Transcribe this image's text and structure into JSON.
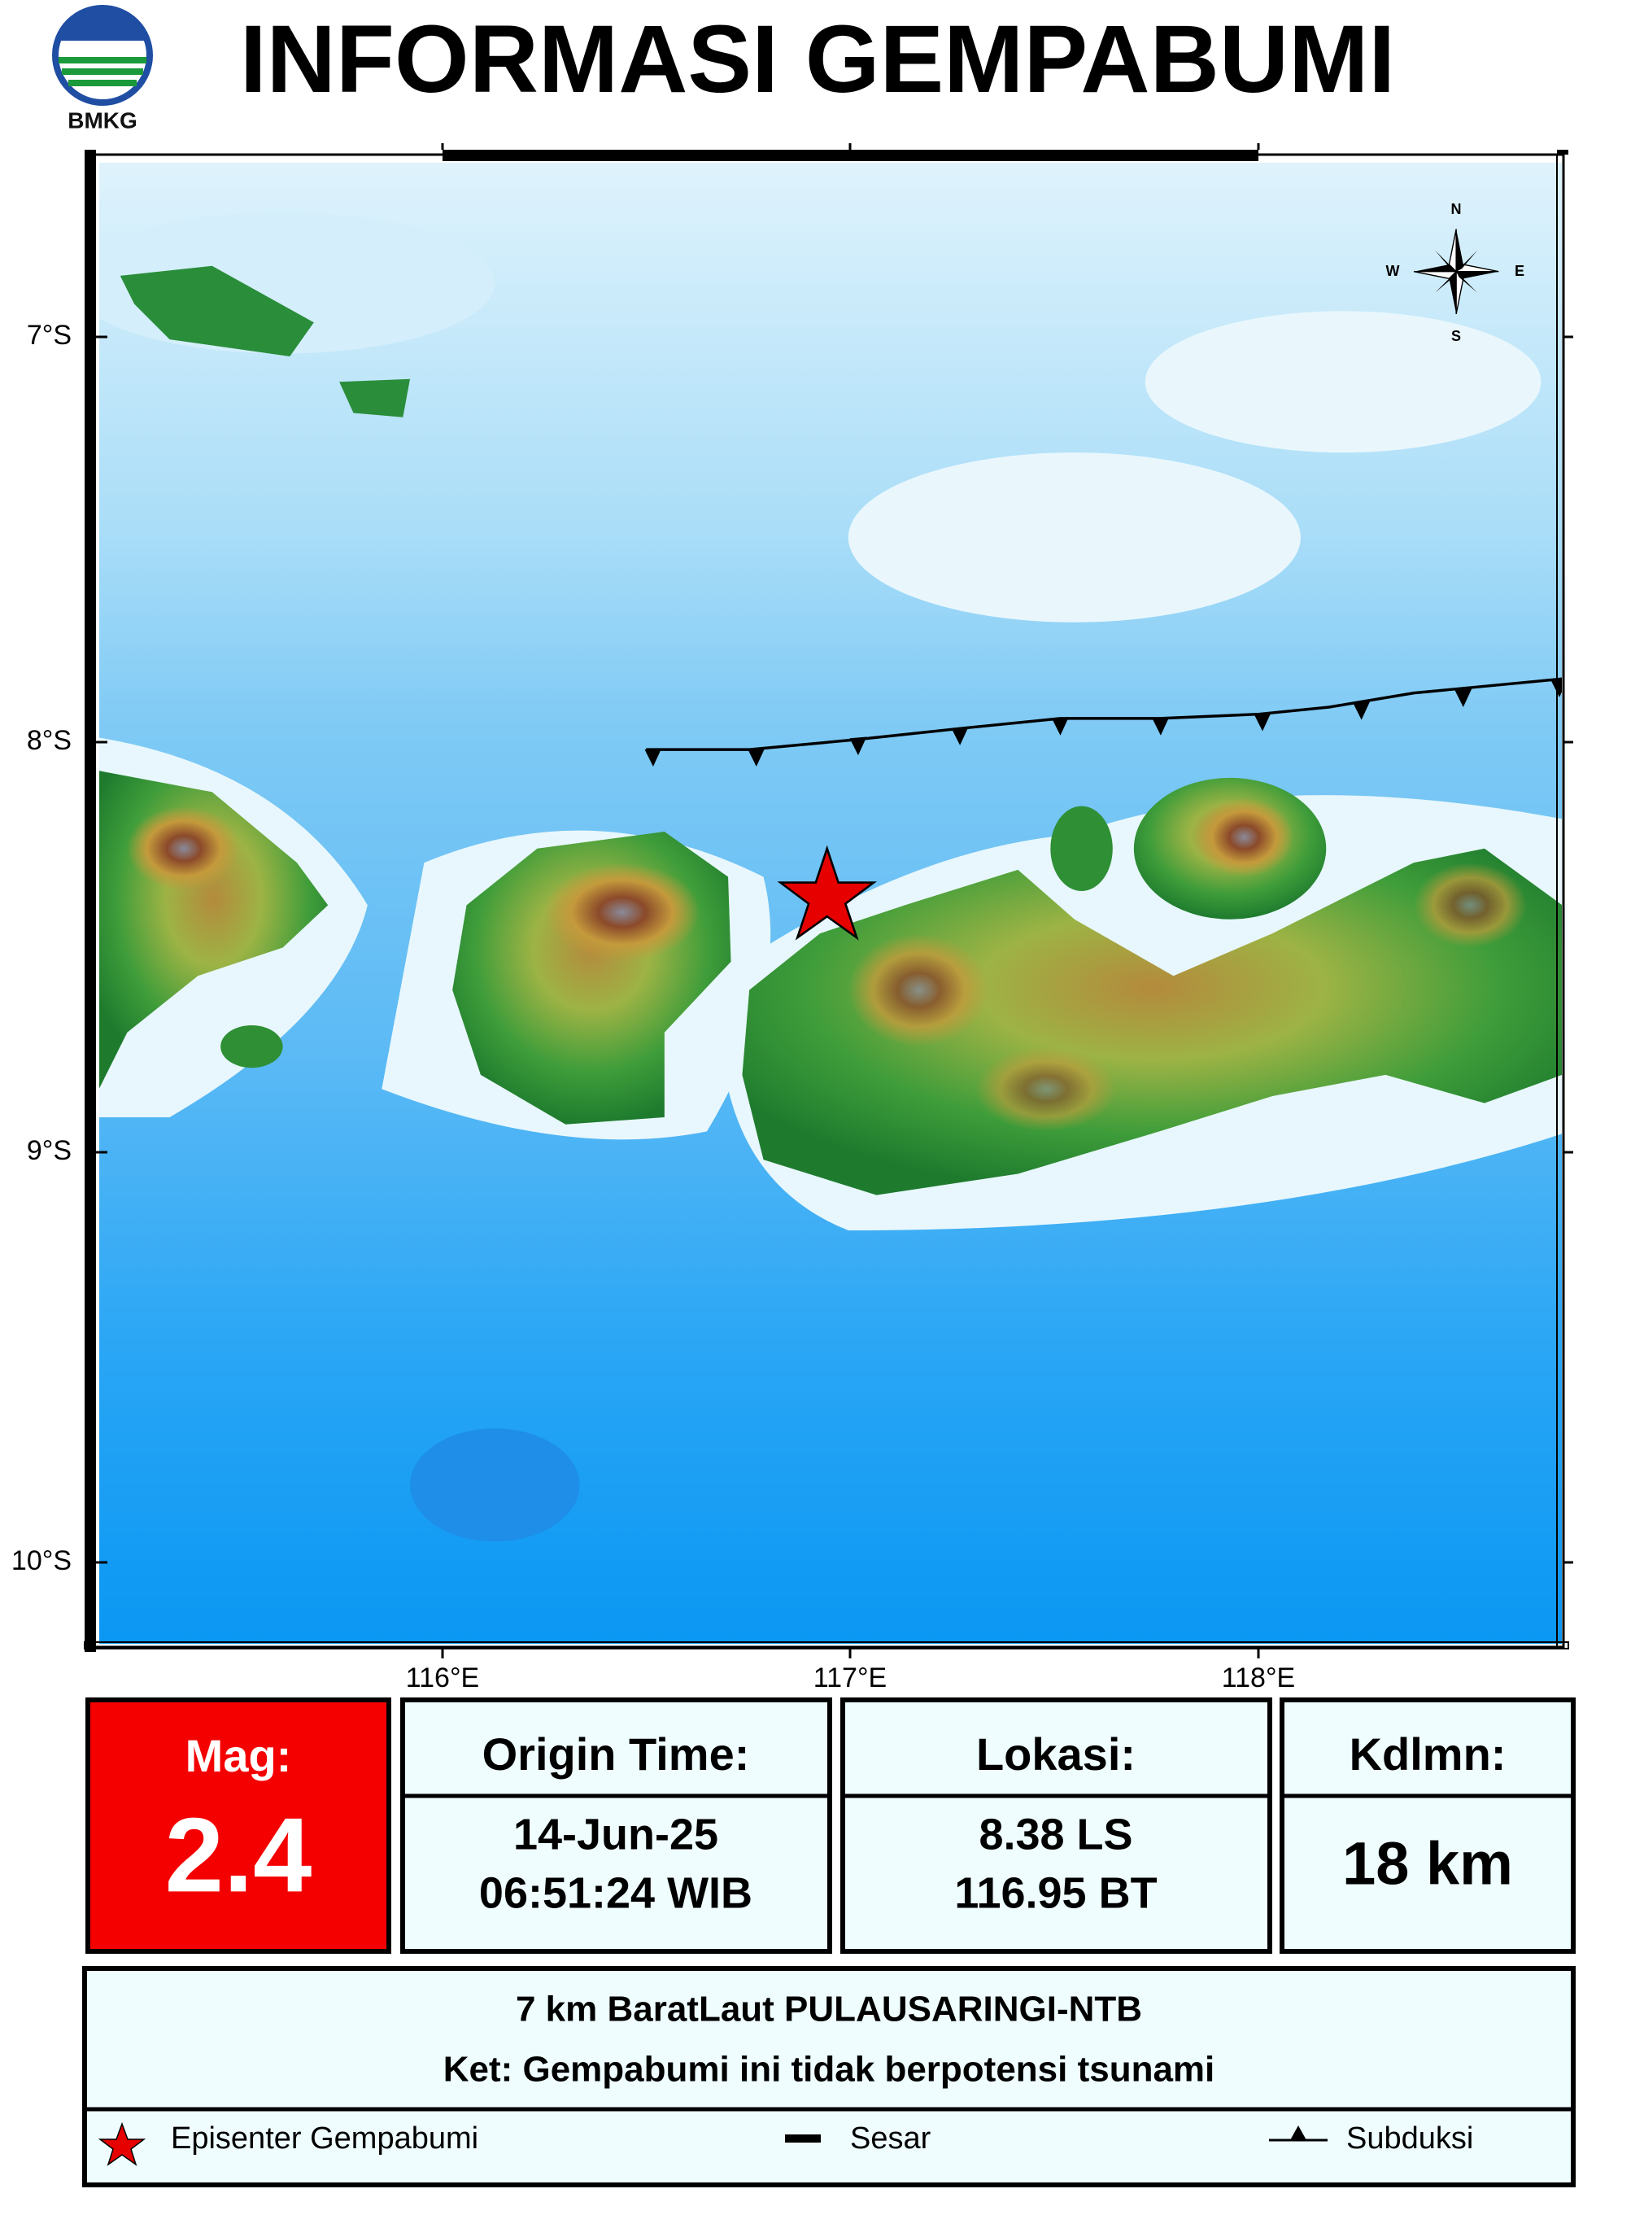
{
  "header": {
    "title": "INFORMASI GEMPABUMI",
    "logo_text": "BMKG"
  },
  "map": {
    "lat_labels": [
      "7°S",
      "8°S",
      "9°S",
      "10°S"
    ],
    "lon_labels": [
      "116°E",
      "117°E",
      "118°E"
    ],
    "compass": {
      "n": "N",
      "s": "S",
      "e": "E",
      "w": "W"
    }
  },
  "info": {
    "magnitude": {
      "label": "Mag:",
      "value": "2.4"
    },
    "origin_time": {
      "label": "Origin Time:",
      "date": "14-Jun-25",
      "time": "06:51:24 WIB"
    },
    "location": {
      "label": "Lokasi:",
      "lat": "8.38 LS",
      "lon": "116.95 BT"
    },
    "depth": {
      "label": "Kdlmn:",
      "value": "18 km"
    }
  },
  "description": {
    "location": "7 km BaratLaut PULAUSARINGI-NTB",
    "note": "Ket: Gempabumi ini tidak berpotensi tsunami"
  },
  "legend": [
    "Episenter Gempabumi",
    "Sesar",
    "Subduksi"
  ]
}
